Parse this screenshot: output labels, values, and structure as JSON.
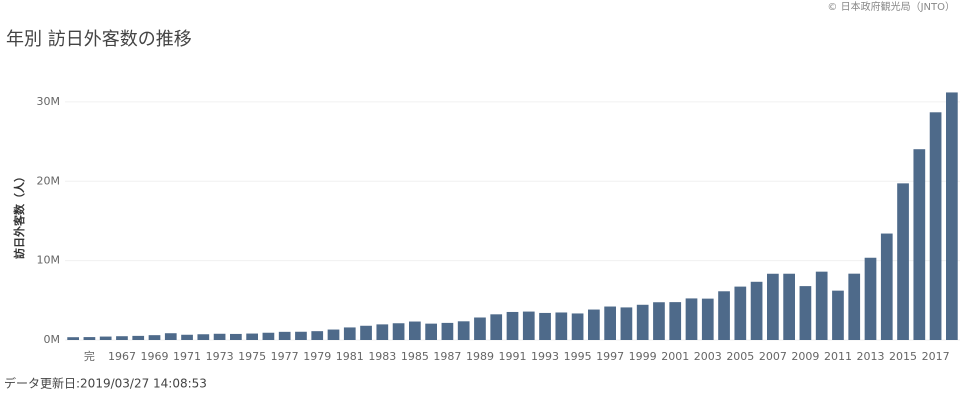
{
  "chart_data": {
    "type": "bar",
    "title": "年別 訪日外客数の推移",
    "source": "© 日本政府観光局（JNTO）",
    "ylabel": "訪日外客数（人）",
    "footnote": "データ更新日:2019/03/27 14:08:53",
    "color": "#4e6a8a",
    "grid": true,
    "categories": [
      null,
      "完",
      null,
      "1967",
      null,
      "1969",
      null,
      "1971",
      null,
      "1973",
      null,
      "1975",
      null,
      "1977",
      null,
      "1979",
      null,
      "1981",
      null,
      "1983",
      null,
      "1985",
      null,
      "1987",
      null,
      "1989",
      null,
      "1991",
      null,
      "1993",
      null,
      "1995",
      null,
      "1997",
      null,
      "1999",
      null,
      "2001",
      null,
      "2003",
      null,
      "2005",
      null,
      "2007",
      null,
      "2009",
      null,
      "2011",
      null,
      "2013",
      null,
      "2015",
      null,
      "2017",
      null
    ],
    "values": [
      353000,
      367000,
      433000,
      477000,
      519000,
      609000,
      854000,
      660000,
      724000,
      785000,
      764000,
      812000,
      915000,
      1028000,
      1039000,
      1113000,
      1317000,
      1583000,
      1793000,
      1968000,
      2110000,
      2327000,
      2062000,
      2155000,
      2355000,
      2835000,
      3236000,
      3533000,
      3582000,
      3410000,
      3468000,
      3345000,
      3837000,
      4218000,
      4106000,
      4438000,
      4757000,
      4772000,
      5239000,
      5212000,
      6138000,
      6728000,
      7334000,
      8347000,
      8351000,
      6790000,
      8611000,
      6219000,
      8358000,
      10364000,
      13413000,
      19737000,
      24040000,
      28691000,
      31192000
    ],
    "ylim": [
      0,
      31500000
    ],
    "yticks": [
      {
        "value": 0,
        "label": "0M"
      },
      {
        "value": 10000000,
        "label": "10M"
      },
      {
        "value": 20000000,
        "label": "20M"
      },
      {
        "value": 30000000,
        "label": "30M"
      }
    ]
  }
}
